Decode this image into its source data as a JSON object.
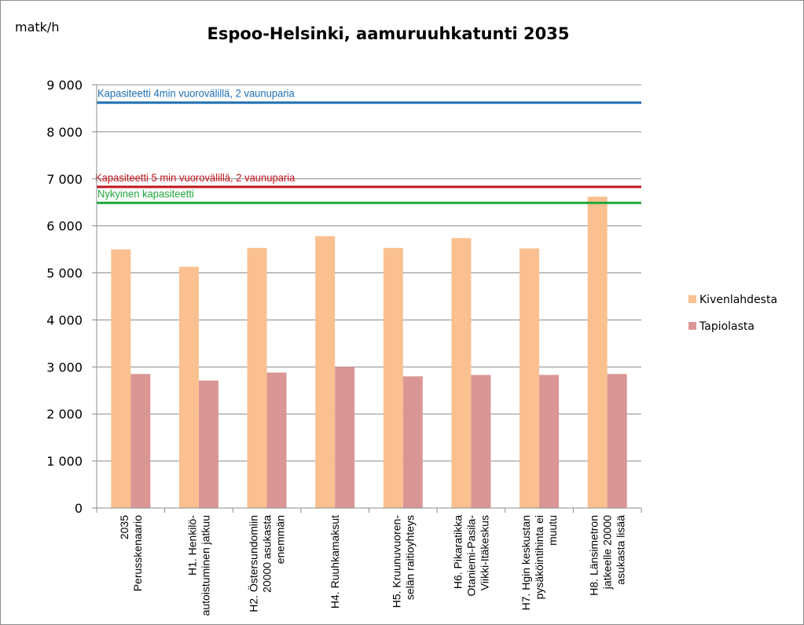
{
  "chart_data": {
    "type": "bar",
    "title": "Espoo-Helsinki, aamuruuhkatunti 2035",
    "ylabel": "matk/h",
    "ylim": [
      0,
      9000
    ],
    "yticks": [
      "0",
      "1 000",
      "2 000",
      "3 000",
      "4 000",
      "5 000",
      "6 000",
      "7 000",
      "8 000",
      "9 000"
    ],
    "grid": true,
    "legend_position": "right",
    "categories": [
      [
        "2035",
        "Perusskenaario"
      ],
      [
        "H1. Henkilö-",
        "autoistuminen jatkuu"
      ],
      [
        "H2. Östersundomiin",
        "20000 asukasta",
        "enemmän"
      ],
      [
        "H4. Ruuhkamaksut"
      ],
      [
        "H5. Kruunuvuoren-",
        "selän raitioyhteys"
      ],
      [
        "H6. Pikaratikka",
        "Otaniemi-Pasila-",
        "Viikki-Itäkeskus"
      ],
      [
        "H7. Hgin keskustan",
        "pysäköintihinta ei",
        "muutu"
      ],
      [
        "H8. Länsimetron",
        "jatkeelle 20000",
        "asukasta lisää"
      ]
    ],
    "series": [
      {
        "name": "Kivenlahdesta",
        "color": "#fac090",
        "values": [
          5500,
          5130,
          5530,
          5780,
          5530,
          5740,
          5520,
          6620
        ]
      },
      {
        "name": "Tapiolasta",
        "color": "#d99694",
        "values": [
          2850,
          2710,
          2880,
          3000,
          2800,
          2830,
          2830,
          2850
        ]
      }
    ],
    "reference_lines": [
      {
        "label": "Kapasiteetti 4min vuorovälillä, 2 vaunuparia",
        "value": 8620,
        "color": "#1f6fb4"
      },
      {
        "label": "Kapasiteetti 5 min vuorovälillä, 2 vaunuparia",
        "value": 6830,
        "color": "#c0141c"
      },
      {
        "label": "Nykyinen kapasiteetti",
        "value": 6490,
        "color": "#22a83c"
      }
    ]
  }
}
